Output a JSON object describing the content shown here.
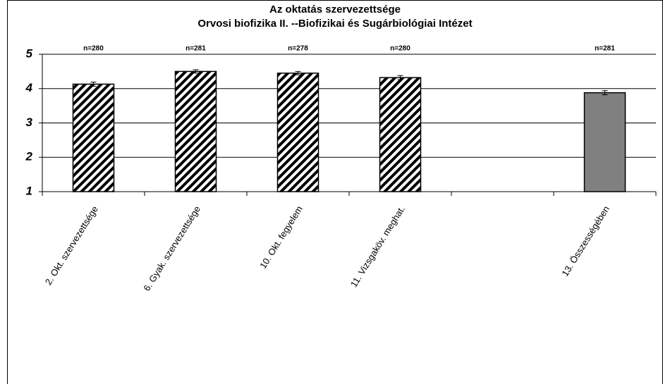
{
  "chart_data": {
    "type": "bar",
    "title": "Az oktatás szervezettsége",
    "subtitle": "Orvosi biofizika II. --Biofizikai és Sugárbiológiai Intézet",
    "categories": [
      "2. Okt. szervezettsége",
      "6. Gyak. szervezettsége",
      "10. Okt. fegyelem",
      "11. Vizsgaköv. meghat.",
      null,
      "13. Összességében"
    ],
    "values": [
      4.13,
      4.5,
      4.45,
      4.32,
      null,
      3.88
    ],
    "errors": [
      0.06,
      0.05,
      0.05,
      0.06,
      null,
      0.06
    ],
    "n_labels": [
      "n=280",
      "n=281",
      "n=278",
      "n=280",
      null,
      "n=281"
    ],
    "colors": [
      "#000000",
      "#000000",
      "#000000",
      "#000000",
      null,
      "#808080"
    ],
    "hatched": [
      true,
      true,
      true,
      true,
      null,
      false
    ],
    "ylim": [
      1,
      5
    ],
    "yticks": [
      1,
      2,
      3,
      4,
      5
    ],
    "grid": true
  }
}
